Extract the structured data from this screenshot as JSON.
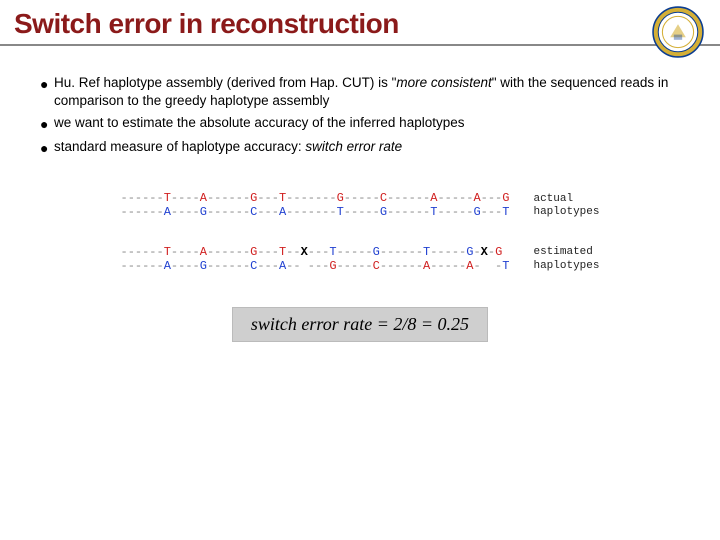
{
  "header": {
    "title": "Switch error in reconstruction",
    "title_color": "#8b1a1a",
    "title_fontsize": 28,
    "underline_color": "#888888"
  },
  "seal": {
    "outer_ring": "#0b3d91",
    "gold": "#d4af37",
    "inner_fill": "#ffffff"
  },
  "bullets": [
    {
      "segments": [
        {
          "text": "Hu. Ref haplotype assembly (derived from Hap. CUT) is \"",
          "style": "plain"
        },
        {
          "text": "more consistent",
          "style": "italic"
        },
        {
          "text": "\" with the sequenced reads in comparison to the greedy haplotype assembly",
          "style": "plain"
        }
      ]
    },
    {
      "segments": [
        {
          "text": "we want to estimate the absolute accuracy of the inferred haplotypes",
          "style": "plain"
        }
      ]
    },
    {
      "segments": [
        {
          "text": "standard measure of haplotype accuracy: ",
          "style": "plain"
        },
        {
          "text": "switch error rate",
          "style": "italic"
        }
      ]
    }
  ],
  "haplotypes": {
    "dash_color": "#888888",
    "colors": {
      "red": "#d02020",
      "blue": "#2040d0",
      "black": "#000000"
    },
    "actual": {
      "label": "actual\nhaplotypes",
      "row1": [
        {
          "t": "------",
          "c": "d"
        },
        {
          "t": "T",
          "c": "r"
        },
        {
          "t": "----",
          "c": "d"
        },
        {
          "t": "A",
          "c": "r"
        },
        {
          "t": "------",
          "c": "d"
        },
        {
          "t": "G",
          "c": "r"
        },
        {
          "t": "---",
          "c": "d"
        },
        {
          "t": "T",
          "c": "r"
        },
        {
          "t": "-------",
          "c": "d"
        },
        {
          "t": "G",
          "c": "r"
        },
        {
          "t": "-----",
          "c": "d"
        },
        {
          "t": "C",
          "c": "r"
        },
        {
          "t": "------",
          "c": "d"
        },
        {
          "t": "A",
          "c": "r"
        },
        {
          "t": "-----",
          "c": "d"
        },
        {
          "t": "A",
          "c": "r"
        },
        {
          "t": "---",
          "c": "d"
        },
        {
          "t": "G",
          "c": "r"
        }
      ],
      "row2": [
        {
          "t": "------",
          "c": "d"
        },
        {
          "t": "A",
          "c": "b"
        },
        {
          "t": "----",
          "c": "d"
        },
        {
          "t": "G",
          "c": "b"
        },
        {
          "t": "------",
          "c": "d"
        },
        {
          "t": "C",
          "c": "b"
        },
        {
          "t": "---",
          "c": "d"
        },
        {
          "t": "A",
          "c": "b"
        },
        {
          "t": "-------",
          "c": "d"
        },
        {
          "t": "T",
          "c": "b"
        },
        {
          "t": "-----",
          "c": "d"
        },
        {
          "t": "G",
          "c": "b"
        },
        {
          "t": "------",
          "c": "d"
        },
        {
          "t": "T",
          "c": "b"
        },
        {
          "t": "-----",
          "c": "d"
        },
        {
          "t": "G",
          "c": "b"
        },
        {
          "t": "---",
          "c": "d"
        },
        {
          "t": "T",
          "c": "b"
        }
      ]
    },
    "estimated": {
      "label": "estimated\nhaplotypes",
      "row1": [
        {
          "t": "------",
          "c": "d"
        },
        {
          "t": "T",
          "c": "r"
        },
        {
          "t": "----",
          "c": "d"
        },
        {
          "t": "A",
          "c": "r"
        },
        {
          "t": "------",
          "c": "d"
        },
        {
          "t": "G",
          "c": "r"
        },
        {
          "t": "---",
          "c": "d"
        },
        {
          "t": "T",
          "c": "r"
        },
        {
          "t": "--",
          "c": "d"
        },
        {
          "t": "X",
          "c": "k"
        },
        {
          "t": "---",
          "c": "d"
        },
        {
          "t": "T",
          "c": "b"
        },
        {
          "t": "-----",
          "c": "d"
        },
        {
          "t": "G",
          "c": "b"
        },
        {
          "t": "------",
          "c": "d"
        },
        {
          "t": "T",
          "c": "b"
        },
        {
          "t": "-----",
          "c": "d"
        },
        {
          "t": "G",
          "c": "b"
        },
        {
          "t": "-",
          "c": "d"
        },
        {
          "t": "X",
          "c": "k"
        },
        {
          "t": "-",
          "c": "d"
        },
        {
          "t": "G",
          "c": "r"
        }
      ],
      "row2": [
        {
          "t": "------",
          "c": "d"
        },
        {
          "t": "A",
          "c": "b"
        },
        {
          "t": "----",
          "c": "d"
        },
        {
          "t": "G",
          "c": "b"
        },
        {
          "t": "------",
          "c": "d"
        },
        {
          "t": "C",
          "c": "b"
        },
        {
          "t": "---",
          "c": "d"
        },
        {
          "t": "A",
          "c": "b"
        },
        {
          "t": "-- ---",
          "c": "d"
        },
        {
          "t": "G",
          "c": "r"
        },
        {
          "t": "-----",
          "c": "d"
        },
        {
          "t": "C",
          "c": "r"
        },
        {
          "t": "------",
          "c": "d"
        },
        {
          "t": "A",
          "c": "r"
        },
        {
          "t": "-----",
          "c": "d"
        },
        {
          "t": "A",
          "c": "r"
        },
        {
          "t": "-  -",
          "c": "d"
        },
        {
          "t": "T",
          "c": "b"
        }
      ]
    }
  },
  "formula": {
    "text": "switch error rate  =  2/8  =  0.25",
    "background": "#cfcfcf",
    "fontsize": 18
  }
}
